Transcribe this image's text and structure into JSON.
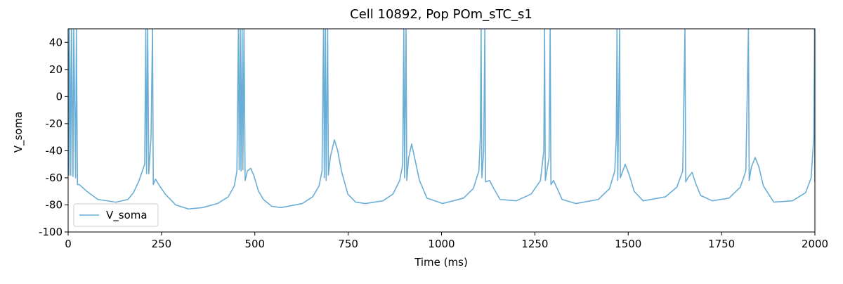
{
  "chart_data": {
    "type": "line",
    "title": "Cell 10892, Pop POm_sTC_s1",
    "x_label": "Time (ms)",
    "y_label": "V_soma",
    "xlim": [
      0,
      2000
    ],
    "ylim": [
      -100,
      50
    ],
    "xticks": [
      0,
      250,
      500,
      750,
      1000,
      1250,
      1500,
      1750,
      2000
    ],
    "yticks": [
      -100,
      -80,
      -60,
      -40,
      -20,
      0,
      20,
      40
    ],
    "legend": "lower left",
    "x": [
      0,
      2,
      4,
      7,
      9,
      13,
      15,
      20,
      22,
      25,
      30,
      50,
      80,
      128,
      160,
      175,
      190,
      205,
      208,
      210,
      213,
      216,
      222,
      226,
      228,
      234,
      245,
      260,
      288,
      322,
      360,
      400,
      429,
      445,
      452,
      456,
      458,
      461,
      463,
      466,
      468,
      471,
      474,
      480,
      489,
      497,
      510,
      523,
      545,
      570,
      627,
      655,
      672,
      680,
      684,
      686,
      689,
      691,
      695,
      697,
      702,
      713,
      722,
      732,
      749,
      770,
      796,
      843,
      870,
      888,
      896,
      899,
      901,
      905,
      907,
      912,
      920,
      930,
      941,
      961,
      1003,
      1059,
      1085,
      1100,
      1104,
      1106,
      1108,
      1113,
      1116,
      1118,
      1129,
      1140,
      1157,
      1200,
      1240,
      1265,
      1274,
      1276,
      1278,
      1288,
      1291,
      1293,
      1300,
      1310,
      1323,
      1360,
      1420,
      1450,
      1464,
      1468,
      1470,
      1472,
      1477,
      1479,
      1492,
      1503,
      1516,
      1540,
      1600,
      1630,
      1646,
      1652,
      1654,
      1660,
      1671,
      1682,
      1694,
      1725,
      1770,
      1800,
      1815,
      1822,
      1824,
      1830,
      1840,
      1850,
      1862,
      1890,
      1940,
      1975,
      1990,
      1997,
      1999,
      2000
    ],
    "series": [
      {
        "name": "V_soma",
        "color": "#6aaed6",
        "values": [
          50,
          -58,
          50,
          -58,
          50,
          -59,
          50,
          -60,
          50,
          -65,
          -65,
          -70,
          -76,
          -78,
          -76,
          -71,
          -62,
          -50,
          50,
          -57,
          50,
          -57,
          -30,
          50,
          -65,
          -61,
          -66,
          -72,
          -80,
          -83,
          -82,
          -79,
          -74,
          -66,
          -55,
          50,
          -54,
          50,
          -55,
          50,
          -54,
          50,
          -62,
          -55,
          -53,
          -58,
          -70,
          -76,
          -81,
          -82,
          -79,
          -74,
          -66,
          -55,
          50,
          -60,
          50,
          -62,
          50,
          -58,
          -45,
          -32,
          -40,
          -55,
          -72,
          -78,
          -79,
          -77,
          -72,
          -62,
          -50,
          50,
          -60,
          50,
          -62,
          -45,
          -35,
          -48,
          -62,
          -75,
          -79,
          -75,
          -68,
          -55,
          -30,
          50,
          -60,
          -40,
          50,
          -63,
          -62,
          -68,
          -76,
          -77,
          -72,
          -62,
          -40,
          50,
          -62,
          -45,
          50,
          -65,
          -62,
          -68,
          -76,
          -79,
          -76,
          -68,
          -55,
          -30,
          50,
          -62,
          50,
          -60,
          -50,
          -58,
          -70,
          -77,
          -74,
          -67,
          -55,
          50,
          -63,
          -60,
          -56,
          -65,
          -73,
          -77,
          -75,
          -67,
          -55,
          50,
          -62,
          -52,
          -45,
          -52,
          -66,
          -78,
          -77,
          -71,
          -60,
          -30,
          50,
          -63
        ]
      }
    ]
  }
}
